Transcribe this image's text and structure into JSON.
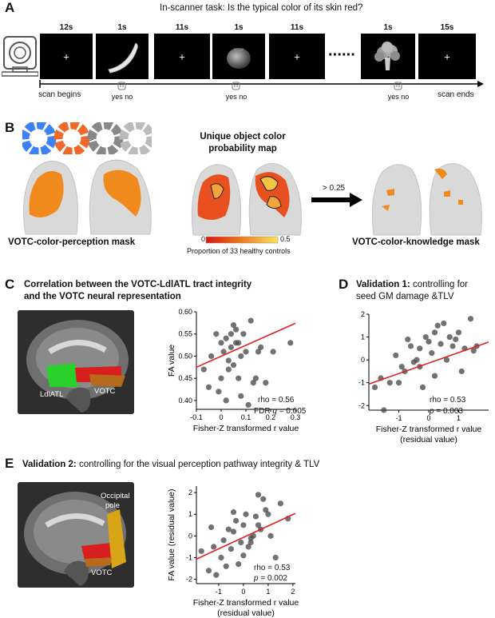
{
  "panelA": {
    "letter": "A",
    "title": "In-scanner task: Is the typical color of its skin red?",
    "durations": [
      "12s",
      "1s",
      "11s",
      "1s",
      "11s",
      "1s",
      "15s"
    ],
    "fixation": "+",
    "dots": "······",
    "scan_begins": "scan begins",
    "scan_ends": "scan ends",
    "response": "yes no",
    "icons": [
      "mri-scanner-icon",
      "banana-image",
      "tomato-image",
      "broccoli-image",
      "button-box-icon"
    ]
  },
  "panelB": {
    "letter": "B",
    "prob_map_title_1": "Unique object color",
    "prob_map_title_2": "probability map",
    "threshold": "> 0.25",
    "colorbar_min": "0",
    "colorbar_max": "0.5",
    "colorbar_label": "Proportion of 33 healthy controls",
    "left_mask": "VOTC-color-perception mask",
    "right_mask": "VOTC-color-knowledge mask",
    "colors": {
      "orange": "#f08a1c",
      "brain": "#d9d9d9"
    }
  },
  "panelC": {
    "letter": "C",
    "title_1": "Correlation between the VOTC-LdlATL tract integrity",
    "title_2": "and the VOTC neural representation",
    "label_ldlatl": "LdlATL",
    "label_votc": "VOTC",
    "stat_rho": "rho = 0.56",
    "stat_fdr": "FDR",
    "stat_q": "q",
    "stat_q_val": "= 0.005"
  },
  "panelD": {
    "letter": "D",
    "title_bold": "Validation 1:",
    "title_rest": "controlling for",
    "title_2": "seed GM damage &TLV",
    "stat_rho": "rho = 0.53",
    "stat_p": "p",
    "stat_p_val": "= 0.003"
  },
  "panelE": {
    "letter": "E",
    "title_bold": "Validation 2:",
    "title_rest": "controlling for the visual perception pathway integrity & TLV",
    "label_occ_1": "Occipital",
    "label_occ_2": "pole",
    "label_votc": "VOTC",
    "stat_rho": "rho = 0.53",
    "stat_p": "p",
    "stat_p_val": "= 0.002"
  },
  "chart_data": [
    {
      "type": "scatter",
      "panel": "C",
      "xlabel": "Fisher-Z transformed r value",
      "ylabel": "FA value",
      "xlim": [
        -0.1,
        0.3
      ],
      "ylim": [
        0.38,
        0.6
      ],
      "xticks": [
        "-0.1",
        "0",
        "0.1",
        "0.2",
        "0.3"
      ],
      "yticks": [
        "0.40",
        "0.45",
        "0.50",
        "0.55",
        "0.60"
      ],
      "x": [
        -0.07,
        -0.04,
        -0.02,
        0.0,
        0.01,
        0.02,
        0.03,
        0.04,
        0.05,
        0.06,
        0.06,
        0.07,
        0.08,
        0.09,
        0.1,
        0.12,
        0.14,
        0.16,
        0.18,
        0.21,
        0.28,
        -0.05,
        0.0,
        0.03,
        0.05,
        0.08,
        0.11,
        0.02,
        -0.01,
        0.04,
        0.07,
        0.13,
        0.15
      ],
      "y": [
        0.47,
        0.5,
        0.55,
        0.53,
        0.51,
        0.54,
        0.49,
        0.52,
        0.57,
        0.56,
        0.53,
        0.45,
        0.41,
        0.55,
        0.51,
        0.58,
        0.45,
        0.52,
        0.44,
        0.51,
        0.53,
        0.43,
        0.45,
        0.47,
        0.48,
        0.5,
        0.39,
        0.4,
        0.42,
        0.55,
        0.53,
        0.44,
        0.51
      ],
      "fit_line": {
        "x": [
          -0.1,
          0.3
        ],
        "y": [
          0.475,
          0.574
        ],
        "color": "#e02020"
      }
    },
    {
      "type": "scatter",
      "panel": "D",
      "xlabel": "Fisher-Z transformed r value",
      "xlabel_2": "(residual value)",
      "ylabel": "FA value (residual value)",
      "xlim": [
        -2.0,
        2.0
      ],
      "ylim": [
        -2.2,
        2.0
      ],
      "xticks": [
        "-1",
        "0",
        "1"
      ],
      "yticks": [
        "-2",
        "-1",
        "0",
        "1",
        "2"
      ],
      "x": [
        -1.8,
        -1.5,
        -1.3,
        -1.1,
        -0.9,
        -0.8,
        -0.7,
        -0.6,
        -0.5,
        -0.4,
        -0.3,
        -0.2,
        -0.1,
        0.0,
        0.1,
        0.2,
        0.3,
        0.4,
        0.5,
        0.6,
        0.8,
        1.0,
        1.2,
        1.4,
        1.6,
        -1.6,
        -1.0,
        -0.3,
        0.2,
        0.7,
        1.1,
        1.5,
        0.9
      ],
      "y": [
        -1.2,
        -2.2,
        -1.0,
        0.2,
        -0.3,
        -0.5,
        0.9,
        0.6,
        -0.1,
        0.0,
        0.5,
        -1.2,
        1.0,
        0.8,
        0.3,
        1.2,
        1.5,
        0.7,
        1.6,
        0.0,
        0.6,
        1.2,
        0.5,
        1.8,
        0.6,
        -0.8,
        -1.0,
        -0.3,
        -0.7,
        1.0,
        -0.5,
        0.4,
        0.9
      ],
      "fit_line": {
        "x": [
          -2.0,
          2.0
        ],
        "y": [
          -1.06,
          0.78
        ],
        "color": "#e02020"
      }
    },
    {
      "type": "scatter",
      "panel": "E",
      "xlabel": "Fisher-Z transformed r value",
      "xlabel_2": "(residual value)",
      "ylabel": "FA value (residual value)",
      "xlim": [
        -1.9,
        2.1
      ],
      "ylim": [
        -2.2,
        2.3
      ],
      "xticks": [
        "-1",
        "0",
        "1",
        "2"
      ],
      "yticks": [
        "-2",
        "-1",
        "0",
        "1",
        "2"
      ],
      "x": [
        -1.7,
        -1.4,
        -1.2,
        -1.1,
        -0.9,
        -0.8,
        -0.6,
        -0.5,
        -0.4,
        -0.3,
        -0.2,
        -0.1,
        0.0,
        0.1,
        0.2,
        0.3,
        0.4,
        0.5,
        0.6,
        0.7,
        0.8,
        0.9,
        1.1,
        1.3,
        1.5,
        1.8,
        -1.3,
        -0.7,
        0.0,
        0.6,
        1.0,
        -0.4,
        0.3
      ],
      "y": [
        -0.7,
        -1.6,
        -0.5,
        -1.8,
        -1.0,
        -0.2,
        0.3,
        -0.6,
        1.1,
        0.7,
        -1.3,
        -0.3,
        0.5,
        1.0,
        -0.5,
        -0.1,
        0.0,
        0.9,
        1.9,
        0.3,
        1.7,
        1.2,
        0.0,
        -1.0,
        1.5,
        0.8,
        0.4,
        -1.4,
        -0.9,
        0.5,
        1.0,
        0.2,
        -0.3
      ],
      "fit_line": {
        "x": [
          -1.9,
          2.1
        ],
        "y": [
          -1.07,
          1.04
        ],
        "color": "#e02020"
      }
    }
  ]
}
